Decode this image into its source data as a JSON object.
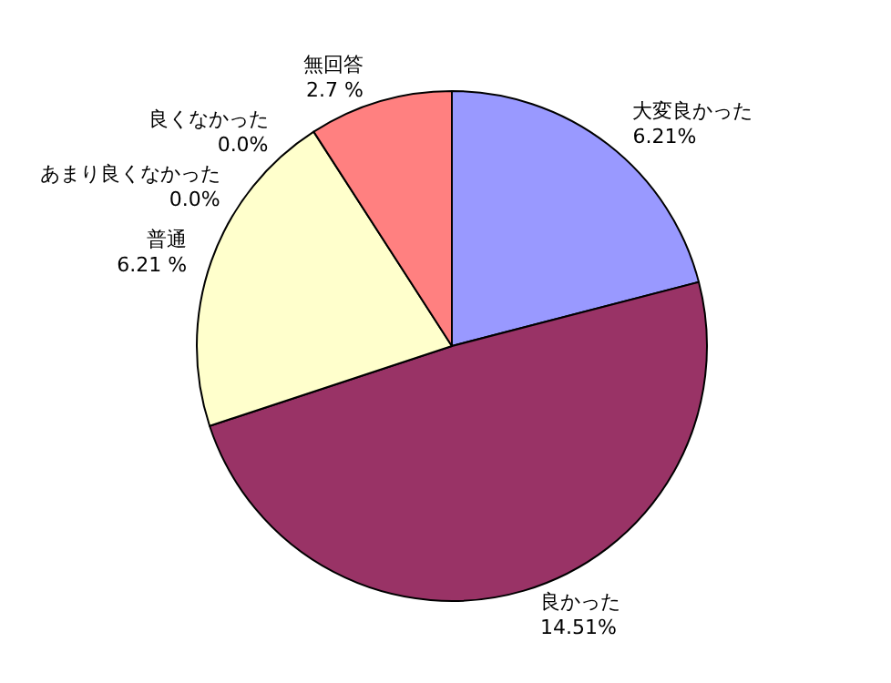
{
  "chart_data": {
    "type": "pie",
    "categories": [
      "大変良かった",
      "良かった",
      "普通",
      "良くなかった",
      "あまり良くなかった",
      "無回答"
    ],
    "values": [
      6.21,
      14.51,
      6.21,
      0,
      0,
      2.7
    ],
    "value_labels": [
      "6.21%",
      "14.51%",
      "6.21 %",
      "0.0%",
      "0.0%",
      "2.7 %"
    ],
    "colors": [
      "#9999ff",
      "#993366",
      "#ffffcc",
      "#ccffff",
      "#660066",
      "#ff8080"
    ],
    "legend": false
  }
}
